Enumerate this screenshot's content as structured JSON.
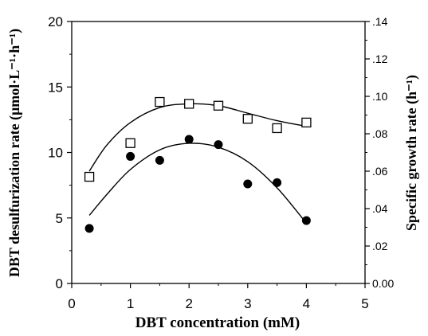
{
  "chart_data": {
    "type": "scatter",
    "xlabel": "DBT concentration (mM)",
    "ylabel": "DBT desulfurization rate (μmol·L⁻¹·h⁻¹)",
    "y2label": "Specific growth rate (h⁻¹)",
    "xlim": [
      0,
      5
    ],
    "ylim": [
      0,
      20
    ],
    "y2lim": [
      0,
      0.14
    ],
    "x_ticks": [
      "0",
      "1",
      "2",
      "3",
      "4",
      "5"
    ],
    "y_ticks": [
      "0",
      "5",
      "10",
      "15",
      "20"
    ],
    "y2_ticks": [
      "0.00",
      ".02",
      ".04",
      ".06",
      ".08",
      ".10",
      ".12",
      ".14"
    ],
    "grid": false,
    "series": [
      {
        "marker": "open-square",
        "axis": "right",
        "points": [
          {
            "x": 0.3,
            "y": 0.057
          },
          {
            "x": 1.0,
            "y": 0.075
          },
          {
            "x": 1.5,
            "y": 0.097
          },
          {
            "x": 2.0,
            "y": 0.096
          },
          {
            "x": 2.5,
            "y": 0.095
          },
          {
            "x": 3.0,
            "y": 0.088
          },
          {
            "x": 3.5,
            "y": 0.083
          },
          {
            "x": 4.0,
            "y": 0.086
          }
        ],
        "fit": [
          {
            "x": 0.3,
            "y": 0.06
          },
          {
            "x": 0.6,
            "y": 0.074
          },
          {
            "x": 1.0,
            "y": 0.086
          },
          {
            "x": 1.5,
            "y": 0.094
          },
          {
            "x": 2.0,
            "y": 0.096
          },
          {
            "x": 2.5,
            "y": 0.095
          },
          {
            "x": 3.0,
            "y": 0.091
          },
          {
            "x": 3.5,
            "y": 0.087
          },
          {
            "x": 4.0,
            "y": 0.084
          }
        ]
      },
      {
        "marker": "filled-circle",
        "axis": "left",
        "points": [
          {
            "x": 0.3,
            "y": 4.2
          },
          {
            "x": 1.0,
            "y": 9.7
          },
          {
            "x": 1.5,
            "y": 9.4
          },
          {
            "x": 2.0,
            "y": 11.0
          },
          {
            "x": 2.5,
            "y": 10.6
          },
          {
            "x": 3.0,
            "y": 7.6
          },
          {
            "x": 3.5,
            "y": 7.7
          },
          {
            "x": 4.0,
            "y": 4.8
          }
        ],
        "fit": [
          {
            "x": 0.3,
            "y": 5.2
          },
          {
            "x": 0.6,
            "y": 6.8
          },
          {
            "x": 1.0,
            "y": 8.7
          },
          {
            "x": 1.5,
            "y": 10.2
          },
          {
            "x": 2.0,
            "y": 10.7
          },
          {
            "x": 2.5,
            "y": 10.4
          },
          {
            "x": 3.0,
            "y": 9.3
          },
          {
            "x": 3.5,
            "y": 7.3
          },
          {
            "x": 4.0,
            "y": 4.6
          }
        ]
      }
    ]
  }
}
